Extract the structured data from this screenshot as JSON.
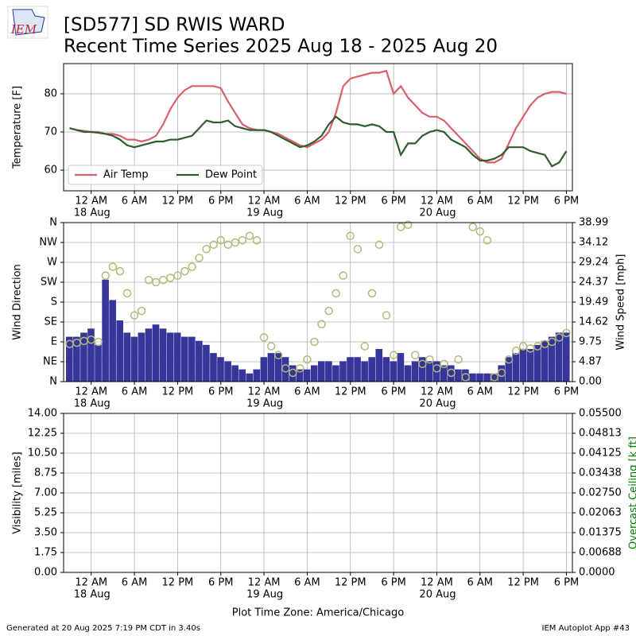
{
  "logo": "IEM",
  "title": "[SD577] SD RWIS WARD",
  "subtitle": "Recent Time Series 2025 Aug 18 - 2025 Aug 20",
  "xlabel": "Plot Time Zone: America/Chicago",
  "footer_left": "Generated at 20 Aug 2025 7:19 PM CDT in 3.40s",
  "footer_right": "IEM Autoplot App #43",
  "chart_data": [
    {
      "type": "line",
      "ylabel": "Temperature [F]",
      "grid": true,
      "legend": "lower left",
      "xlim": [
        "17 Aug 20:10",
        "20 Aug 18:50"
      ],
      "xticks": [
        {
          "value": "18 Aug 00:00",
          "label": "12 AM"
        },
        {
          "value": "18 Aug 06:00",
          "label": "6 AM"
        },
        {
          "value": "18 Aug 12:00",
          "label": "12 PM"
        },
        {
          "value": "18 Aug 18:00",
          "label": "6 PM"
        },
        {
          "value": "19 Aug 00:00",
          "label": "12 AM"
        },
        {
          "value": "19 Aug 06:00",
          "label": "6 AM"
        },
        {
          "value": "19 Aug 12:00",
          "label": "12 PM"
        },
        {
          "value": "19 Aug 18:00",
          "label": "6 PM"
        },
        {
          "value": "20 Aug 00:00",
          "label": "12 AM"
        },
        {
          "value": "20 Aug 06:00",
          "label": "6 AM"
        },
        {
          "value": "20 Aug 12:00",
          "label": "12 PM"
        },
        {
          "value": "20 Aug 18:00",
          "label": "6 PM"
        }
      ],
      "xtick_dates": [
        {
          "value": "18 Aug 00:00",
          "label": "18 Aug"
        },
        {
          "value": "19 Aug 00:00",
          "label": "19 Aug"
        },
        {
          "value": "20 Aug 00:00",
          "label": "20 Aug"
        }
      ],
      "ylim": [
        54.6,
        87.9
      ],
      "yticks": [
        60,
        70,
        80
      ],
      "x": [
        "17 Aug 21:00",
        "17 Aug 22:00",
        "17 Aug 23:00",
        "18 Aug 00:00",
        "18 Aug 01:00",
        "18 Aug 02:00",
        "18 Aug 03:00",
        "18 Aug 04:00",
        "18 Aug 05:00",
        "18 Aug 06:00",
        "18 Aug 07:00",
        "18 Aug 08:00",
        "18 Aug 09:00",
        "18 Aug 10:00",
        "18 Aug 11:00",
        "18 Aug 12:00",
        "18 Aug 13:00",
        "18 Aug 14:00",
        "18 Aug 15:00",
        "18 Aug 16:00",
        "18 Aug 17:00",
        "18 Aug 18:00",
        "18 Aug 19:00",
        "18 Aug 20:00",
        "18 Aug 21:00",
        "18 Aug 22:00",
        "18 Aug 23:00",
        "19 Aug 00:00",
        "19 Aug 01:00",
        "19 Aug 02:00",
        "19 Aug 03:00",
        "19 Aug 04:00",
        "19 Aug 05:00",
        "19 Aug 06:00",
        "19 Aug 07:00",
        "19 Aug 08:00",
        "19 Aug 09:00",
        "19 Aug 10:00",
        "19 Aug 11:00",
        "19 Aug 12:00",
        "19 Aug 13:00",
        "19 Aug 14:00",
        "19 Aug 15:00",
        "19 Aug 16:00",
        "19 Aug 17:00",
        "19 Aug 18:00",
        "19 Aug 19:00",
        "19 Aug 20:00",
        "19 Aug 21:00",
        "19 Aug 22:00",
        "19 Aug 23:00",
        "20 Aug 00:00",
        "20 Aug 01:00",
        "20 Aug 02:00",
        "20 Aug 03:00",
        "20 Aug 04:00",
        "20 Aug 05:00",
        "20 Aug 06:00",
        "20 Aug 07:00",
        "20 Aug 08:00",
        "20 Aug 09:00",
        "20 Aug 10:00",
        "20 Aug 11:00",
        "20 Aug 12:00",
        "20 Aug 13:00",
        "20 Aug 14:00",
        "20 Aug 15:00",
        "20 Aug 16:00",
        "20 Aug 17:00",
        "20 Aug 18:00"
      ],
      "series": [
        {
          "name": "Air Temp",
          "color": "#d9606a",
          "values": [
            71,
            70.5,
            70.3,
            70,
            70,
            69.5,
            69.5,
            69,
            68,
            68,
            67.5,
            68,
            69,
            72,
            76,
            79,
            81,
            82,
            82,
            82,
            82,
            81.5,
            78,
            75,
            72,
            71,
            70.5,
            70.5,
            70,
            69.5,
            68.5,
            67.5,
            66.5,
            66,
            67,
            68,
            70,
            75,
            82,
            84,
            84.5,
            85,
            85.5,
            85.5,
            86,
            80,
            82,
            79,
            77,
            75,
            74,
            74,
            73,
            71,
            69,
            67,
            65,
            63,
            62,
            62,
            63,
            67,
            71,
            74,
            77,
            79,
            80,
            80.5,
            80.5,
            80
          ]
        },
        {
          "name": "Dew Point",
          "color": "#2e5e2e",
          "values": [
            71,
            70.5,
            70,
            70,
            69.8,
            69.5,
            69,
            68,
            66.5,
            66,
            66.5,
            67,
            67.5,
            67.5,
            68,
            68,
            68.5,
            69,
            71,
            73,
            72.5,
            72.5,
            73,
            71.5,
            71,
            70.5,
            70.5,
            70.5,
            70,
            69,
            68,
            67,
            66,
            66.5,
            67.5,
            69,
            72,
            74,
            72.5,
            72,
            72,
            71.5,
            72,
            71.5,
            70,
            70,
            64,
            67,
            67,
            69,
            70,
            70.5,
            70,
            68,
            67,
            66,
            64,
            62.5,
            62.5,
            63,
            64,
            66,
            66,
            66,
            65,
            64.5,
            64,
            61,
            62,
            65
          ]
        }
      ]
    },
    {
      "type": "combo",
      "ylabel": "Wind Direction",
      "y2label": "Wind Speed [mph]",
      "grid": true,
      "xlim": [
        "17 Aug 20:10",
        "20 Aug 18:50"
      ],
      "xticks": [
        {
          "value": "18 Aug 00:00",
          "label": "12 AM"
        },
        {
          "value": "18 Aug 06:00",
          "label": "6 AM"
        },
        {
          "value": "18 Aug 12:00",
          "label": "12 PM"
        },
        {
          "value": "18 Aug 18:00",
          "label": "6 PM"
        },
        {
          "value": "19 Aug 00:00",
          "label": "12 AM"
        },
        {
          "value": "19 Aug 06:00",
          "label": "6 AM"
        },
        {
          "value": "19 Aug 12:00",
          "label": "12 PM"
        },
        {
          "value": "19 Aug 18:00",
          "label": "6 PM"
        },
        {
          "value": "20 Aug 00:00",
          "label": "12 AM"
        },
        {
          "value": "20 Aug 06:00",
          "label": "6 AM"
        },
        {
          "value": "20 Aug 12:00",
          "label": "12 PM"
        },
        {
          "value": "20 Aug 18:00",
          "label": "6 PM"
        }
      ],
      "xtick_dates": [
        {
          "value": "18 Aug 00:00",
          "label": "18 Aug"
        },
        {
          "value": "19 Aug 00:00",
          "label": "19 Aug"
        },
        {
          "value": "20 Aug 00:00",
          "label": "20 Aug"
        }
      ],
      "ylim": [
        0,
        360
      ],
      "yticks": [
        {
          "value": 0,
          "label": "N"
        },
        {
          "value": 45,
          "label": "NE"
        },
        {
          "value": 90,
          "label": "E"
        },
        {
          "value": 135,
          "label": "SE"
        },
        {
          "value": 180,
          "label": "S"
        },
        {
          "value": 225,
          "label": "SW"
        },
        {
          "value": 270,
          "label": "W"
        },
        {
          "value": 315,
          "label": "NW"
        },
        {
          "value": 360,
          "label": "N"
        }
      ],
      "y2lim": [
        0,
        38.99
      ],
      "y2ticks": [
        {
          "value": 0,
          "label": "0.00"
        },
        4.87,
        9.75,
        14.62,
        19.49,
        24.37,
        29.24,
        34.12,
        38.99
      ],
      "x": [
        "17 Aug 21:00",
        "17 Aug 22:00",
        "17 Aug 23:00",
        "18 Aug 00:00",
        "18 Aug 01:00",
        "18 Aug 02:00",
        "18 Aug 03:00",
        "18 Aug 04:00",
        "18 Aug 05:00",
        "18 Aug 06:00",
        "18 Aug 07:00",
        "18 Aug 08:00",
        "18 Aug 09:00",
        "18 Aug 10:00",
        "18 Aug 11:00",
        "18 Aug 12:00",
        "18 Aug 13:00",
        "18 Aug 14:00",
        "18 Aug 15:00",
        "18 Aug 16:00",
        "18 Aug 17:00",
        "18 Aug 18:00",
        "18 Aug 19:00",
        "18 Aug 20:00",
        "18 Aug 21:00",
        "18 Aug 22:00",
        "18 Aug 23:00",
        "19 Aug 00:00",
        "19 Aug 01:00",
        "19 Aug 02:00",
        "19 Aug 03:00",
        "19 Aug 04:00",
        "19 Aug 05:00",
        "19 Aug 06:00",
        "19 Aug 07:00",
        "19 Aug 08:00",
        "19 Aug 09:00",
        "19 Aug 10:00",
        "19 Aug 11:00",
        "19 Aug 12:00",
        "19 Aug 13:00",
        "19 Aug 14:00",
        "19 Aug 15:00",
        "19 Aug 16:00",
        "19 Aug 17:00",
        "19 Aug 18:00",
        "19 Aug 19:00",
        "19 Aug 20:00",
        "19 Aug 21:00",
        "19 Aug 22:00",
        "19 Aug 23:00",
        "20 Aug 00:00",
        "20 Aug 01:00",
        "20 Aug 02:00",
        "20 Aug 03:00",
        "20 Aug 04:00",
        "20 Aug 05:00",
        "20 Aug 06:00",
        "20 Aug 07:00",
        "20 Aug 08:00",
        "20 Aug 09:00",
        "20 Aug 10:00",
        "20 Aug 11:00",
        "20 Aug 12:00",
        "20 Aug 13:00",
        "20 Aug 14:00",
        "20 Aug 15:00",
        "20 Aug 16:00",
        "20 Aug 17:00",
        "20 Aug 18:00"
      ],
      "series": [
        {
          "type": "bar",
          "axis": "y2",
          "color": "#35359a",
          "values": [
            11,
            11,
            12,
            13,
            9,
            25,
            20,
            15,
            12,
            11,
            12,
            13,
            14,
            13,
            12,
            12,
            11,
            11,
            10,
            9,
            7,
            6,
            5,
            4,
            3,
            2,
            3,
            6,
            7,
            7,
            6,
            4,
            3,
            3,
            4,
            5,
            5,
            4,
            5,
            6,
            6,
            5,
            6,
            8,
            6,
            5,
            7,
            4,
            5,
            6,
            5,
            5,
            4,
            4,
            3,
            3,
            2,
            2,
            2,
            2,
            4,
            6,
            7,
            8,
            8,
            9,
            10,
            11,
            12,
            12
          ]
        },
        {
          "type": "scatter",
          "axis": "y",
          "color": "#b5b878",
          "values": [
            85,
            88,
            92,
            95,
            90,
            240,
            260,
            250,
            200,
            150,
            160,
            230,
            225,
            230,
            235,
            240,
            250,
            260,
            280,
            300,
            310,
            320,
            310,
            315,
            320,
            330,
            320,
            100,
            80,
            60,
            30,
            20,
            30,
            50,
            90,
            130,
            160,
            200,
            240,
            330,
            300,
            80,
            200,
            310,
            150,
            60,
            350,
            355,
            60,
            40,
            50,
            30,
            40,
            20,
            50,
            10,
            350,
            340,
            320,
            10,
            20,
            50,
            70,
            80,
            75,
            80,
            85,
            90,
            100,
            110
          ]
        }
      ]
    },
    {
      "type": "line",
      "ylabel": "Visibility [miles]",
      "y2label": "Overcast Ceiling [k ft]",
      "y2label_color": "green",
      "grid": true,
      "xlim": [
        "17 Aug 20:10",
        "20 Aug 18:50"
      ],
      "xticks": [
        {
          "value": "18 Aug 00:00",
          "label": "12 AM"
        },
        {
          "value": "18 Aug 06:00",
          "label": "6 AM"
        },
        {
          "value": "18 Aug 12:00",
          "label": "12 PM"
        },
        {
          "value": "18 Aug 18:00",
          "label": "6 PM"
        },
        {
          "value": "19 Aug 00:00",
          "label": "12 AM"
        },
        {
          "value": "19 Aug 06:00",
          "label": "6 AM"
        },
        {
          "value": "19 Aug 12:00",
          "label": "12 PM"
        },
        {
          "value": "19 Aug 18:00",
          "label": "6 PM"
        },
        {
          "value": "20 Aug 00:00",
          "label": "12 AM"
        },
        {
          "value": "20 Aug 06:00",
          "label": "6 AM"
        },
        {
          "value": "20 Aug 12:00",
          "label": "12 PM"
        },
        {
          "value": "20 Aug 18:00",
          "label": "6 PM"
        }
      ],
      "xtick_dates": [
        {
          "value": "18 Aug 00:00",
          "label": "18 Aug"
        },
        {
          "value": "19 Aug 00:00",
          "label": "19 Aug"
        },
        {
          "value": "20 Aug 00:00",
          "label": "20 Aug"
        }
      ],
      "ylim": [
        0,
        14
      ],
      "yticks": [
        {
          "value": 0,
          "label": "0.00"
        },
        1.75,
        {
          "value": 3.5,
          "label": "3.50"
        },
        5.25,
        {
          "value": 7,
          "label": "7.00"
        },
        8.75,
        {
          "value": 10.5,
          "label": "10.50"
        },
        12.25,
        {
          "value": 14,
          "label": "14.00"
        }
      ],
      "y2lim": [
        0,
        0.055
      ],
      "y2ticks": [
        {
          "value": 0,
          "label": "0.0000"
        },
        {
          "value": 0.006875,
          "label": "0.00688"
        },
        0.01375,
        {
          "value": 0.020625,
          "label": "0.02063"
        },
        {
          "value": 0.0275,
          "label": "0.02750"
        },
        {
          "value": 0.034375,
          "label": "0.03438"
        },
        0.04125,
        {
          "value": 0.048125,
          "label": "0.04813"
        },
        {
          "value": 0.055,
          "label": "0.05500"
        }
      ],
      "series": []
    }
  ]
}
